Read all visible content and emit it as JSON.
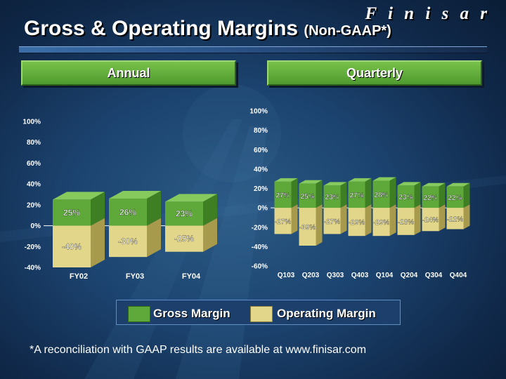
{
  "header": {
    "brand": "F i n i s a r",
    "title_main": "Gross & Operating Margins",
    "title_sub": "(Non-GAAP*)"
  },
  "banners": {
    "annual": "Annual",
    "quarterly": "Quarterly"
  },
  "legend": {
    "gross": "Gross Margin",
    "operating": "Operating Margin"
  },
  "colors": {
    "gross": "#5fa83a",
    "operating": "#e2d68a"
  },
  "footnote": "*A reconciliation with GAAP results are available at www.finisar.com",
  "chart_data": [
    {
      "type": "bar",
      "title": "Annual",
      "categories": [
        "FY02",
        "FY03",
        "FY04"
      ],
      "series": [
        {
          "name": "Gross Margin",
          "values": [
            25,
            26,
            23
          ],
          "labels": [
            "25%",
            "26%",
            "23%"
          ]
        },
        {
          "name": "Operating Margin",
          "values": [
            -40,
            -30,
            -25
          ],
          "labels": [
            "-40%",
            "-30%",
            "-25%"
          ]
        }
      ],
      "ylim": [
        -40,
        100
      ],
      "yticks": [
        "-40%",
        "-20%",
        "0%",
        "20%",
        "40%",
        "60%",
        "80%",
        "100%"
      ],
      "grid": false
    },
    {
      "type": "bar",
      "title": "Quarterly",
      "categories": [
        "Q103",
        "Q203",
        "Q303",
        "Q403",
        "Q104",
        "Q204",
        "Q304",
        "Q404"
      ],
      "series": [
        {
          "name": "Gross Margin",
          "values": [
            27,
            25,
            23,
            27,
            28,
            23,
            22,
            22
          ],
          "labels": [
            "27%",
            "25%",
            "23%",
            "27%",
            "28%",
            "23%",
            "22%",
            "22%"
          ]
        },
        {
          "name": "Operating Margin",
          "values": [
            -27,
            -39,
            -27,
            -29,
            -29,
            -28,
            -24,
            -22
          ],
          "labels": [
            "-27%",
            "-39%",
            "-27%",
            "-29%",
            "-29%",
            "-28%",
            "-24%",
            "-22%"
          ]
        }
      ],
      "ylim": [
        -60,
        100
      ],
      "yticks": [
        "-60%",
        "-40%",
        "-20%",
        "0%",
        "20%",
        "40%",
        "60%",
        "80%",
        "100%"
      ],
      "grid": false
    }
  ]
}
